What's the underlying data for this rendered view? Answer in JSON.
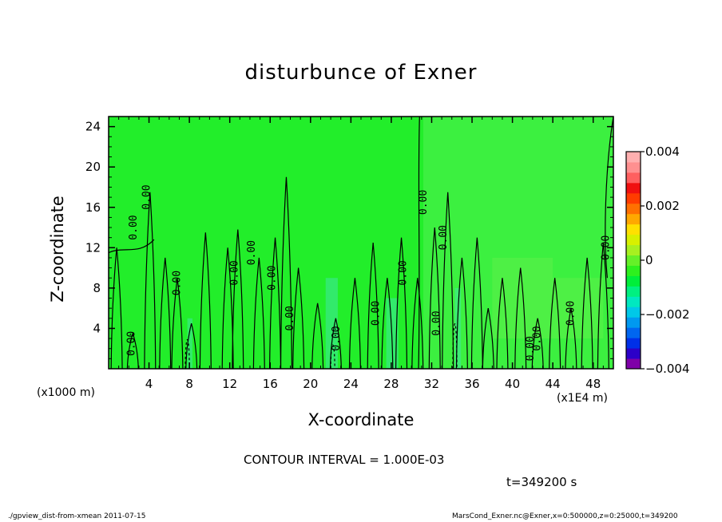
{
  "header": {
    "title": "disturbunce of Exner"
  },
  "footer": {
    "contour_interval": "CONTOUR INTERVAL = 1.000E-03",
    "time": "t=349200 s",
    "script": "./gpview_dist-from-xmean   2011-07-15",
    "source": "MarsCond_Exner.nc@Exner,x=0:500000,z=0:25000,t=349200"
  },
  "chart_data": {
    "type": "heatmap",
    "title": "disturbunce of Exner",
    "xlabel": "X-coordinate",
    "ylabel": "Z-coordinate",
    "x_unit": "(x1000 m)",
    "x_multiplier": "(x1E4 m)",
    "xlim": [
      0,
      50
    ],
    "ylim": [
      0,
      25
    ],
    "xticks": [
      "4",
      "8",
      "12",
      "16",
      "20",
      "24",
      "28",
      "32",
      "36",
      "40",
      "44",
      "48"
    ],
    "yticks": [
      "4",
      "8",
      "12",
      "16",
      "20",
      "24"
    ],
    "colorbar": {
      "range": [
        -0.004,
        0.004
      ],
      "tick_labels": [
        "0.004",
        "0.002",
        "0",
        "−0.002",
        "−0.004"
      ],
      "colors": [
        "#7f00a8",
        "#2c00c8",
        "#0030e8",
        "#0066f0",
        "#0099f0",
        "#00c8e8",
        "#00e8c0",
        "#00f080",
        "#00ee3a",
        "#2ef01e",
        "#66f028",
        "#a8f020",
        "#d8f000",
        "#ffe000",
        "#ffa800",
        "#ff7000",
        "#ff3c00",
        "#f01010",
        "#ff6060",
        "#ff9090",
        "#ffb0b0"
      ]
    },
    "contour_interval": 0.001,
    "contour_labels": [
      "0.00",
      "0.00",
      "0.00",
      "0.00",
      "0.00",
      "0.00",
      "0.00",
      "0.00",
      "0.00",
      "0.00",
      "0.00",
      "0.00",
      "0.00",
      "0.00",
      "0.00",
      "0.00",
      "0.00",
      "0.00"
    ],
    "colors": {
      "background_left": "#22ee2a",
      "background_right": "#3cf040",
      "negative_patch": "#40e8a0"
    }
  }
}
